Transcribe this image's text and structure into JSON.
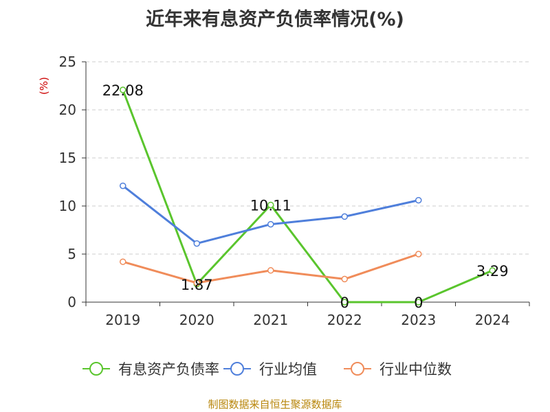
{
  "title": "近年来有息资产负债率情况(%)",
  "source": "制图数据来自恒生聚源数据库",
  "chart_data": {
    "type": "line",
    "title": "近年来有息资产负债率情况(%)",
    "ylabel": "(%)",
    "xlabel": "",
    "categories": [
      "2019",
      "2020",
      "2021",
      "2022",
      "2023",
      "2024"
    ],
    "ylim": [
      0,
      25
    ],
    "yticks": [
      0,
      5,
      10,
      15,
      20,
      25
    ],
    "grid": true,
    "legend_position": "bottom",
    "series": [
      {
        "name": "有息资产负债率",
        "color": "#5ac52d",
        "values": [
          22.08,
          1.87,
          10.11,
          0,
          0,
          3.29
        ],
        "labels": [
          "22.08",
          "1.87",
          "10.11",
          "0",
          "0",
          "3.29"
        ]
      },
      {
        "name": "行业均值",
        "color": "#4f7fdb",
        "values": [
          12.1,
          6.1,
          8.1,
          8.9,
          10.6,
          null
        ]
      },
      {
        "name": "行业中位数",
        "color": "#f08c5a",
        "values": [
          4.2,
          2.0,
          3.3,
          2.4,
          5.0,
          null
        ]
      }
    ]
  }
}
